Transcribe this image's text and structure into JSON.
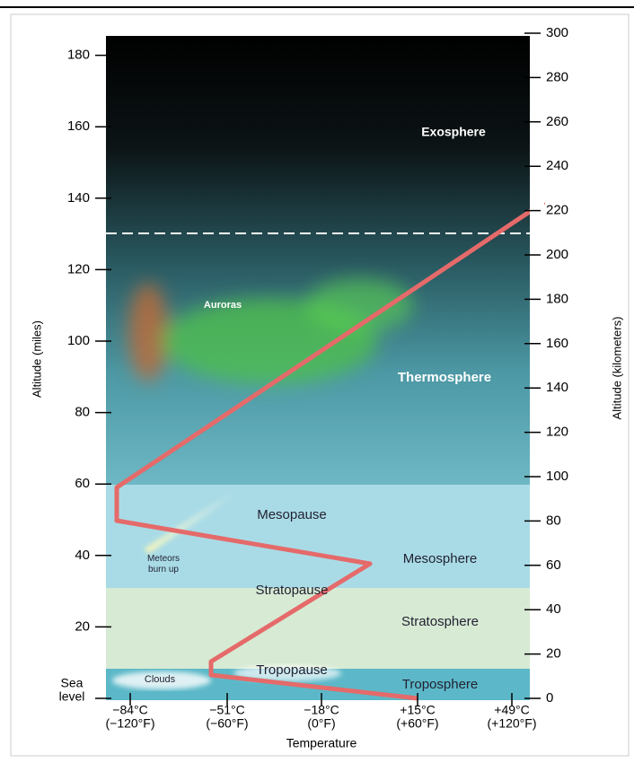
{
  "axes": {
    "left_title": "Altitude (miles)",
    "right_title": "Altitude (kilometers)",
    "x_title": "Temperature",
    "left_ticks": [
      180,
      160,
      140,
      120,
      100,
      80,
      60,
      40,
      20
    ],
    "sea_level": [
      "Sea",
      "level"
    ],
    "right_ticks": [
      300,
      280,
      260,
      240,
      220,
      200,
      180,
      160,
      140,
      120,
      100,
      80,
      60,
      40,
      20,
      0
    ],
    "x_labels": [
      {
        "celsius": "−84°C",
        "fahrenheit": "(−120°F)"
      },
      {
        "celsius": "−51°C",
        "fahrenheit": "(−60°F)"
      },
      {
        "celsius": "−18°C",
        "fahrenheit": "(0°F)"
      },
      {
        "celsius": "+15°C",
        "fahrenheit": "(+60°F)"
      },
      {
        "celsius": "+49°C",
        "fahrenheit": "(+120°F)"
      }
    ]
  },
  "layers": [
    {
      "label": "Exosphere"
    },
    {
      "label": "Auroras"
    },
    {
      "label": "Thermosphere"
    },
    {
      "label": "Mesopause"
    },
    {
      "label": "Meteors burn up"
    },
    {
      "label": "Mesosphere"
    },
    {
      "label": "Stratopause"
    },
    {
      "label": "Stratosphere"
    },
    {
      "label": "Tropopause"
    },
    {
      "label": "Clouds"
    },
    {
      "label": "Troposphere"
    }
  ]
}
